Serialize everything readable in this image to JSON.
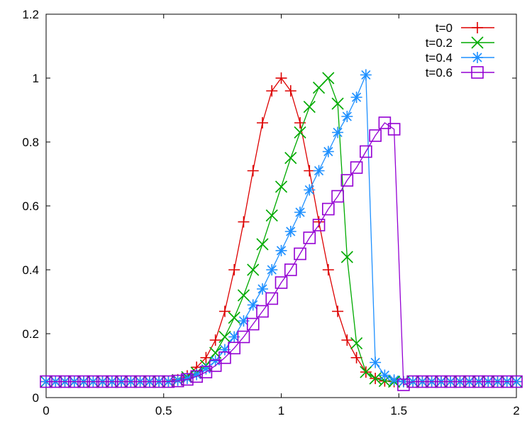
{
  "chart_data": {
    "type": "line",
    "title": "",
    "xlabel": "",
    "ylabel": "",
    "xlim": [
      0,
      2
    ],
    "ylim": [
      0,
      1.2
    ],
    "xticks": [
      "0",
      "0.5",
      "1",
      "1.5",
      "2"
    ],
    "yticks": [
      "0",
      "0.2",
      "0.4",
      "0.6",
      "0.8",
      "1",
      "1.2"
    ],
    "grid": false,
    "legend_position": "top-right",
    "series": [
      {
        "name": "t=0",
        "color": "#dd0000",
        "marker": "plus",
        "x": [
          0,
          0.04,
          0.08,
          0.12,
          0.16,
          0.2,
          0.24,
          0.28,
          0.32,
          0.36,
          0.4,
          0.44,
          0.48,
          0.52,
          0.56,
          0.6,
          0.64,
          0.68,
          0.72,
          0.76,
          0.8,
          0.84,
          0.88,
          0.92,
          0.96,
          1.0,
          1.04,
          1.08,
          1.12,
          1.16,
          1.2,
          1.24,
          1.28,
          1.32,
          1.36,
          1.4,
          1.44,
          1.48,
          1.52,
          1.56,
          1.6,
          1.64,
          1.68,
          1.72,
          1.76,
          1.8,
          1.84,
          1.88,
          1.92,
          1.96,
          2.0
        ],
        "y": [
          0.05,
          0.05,
          0.05,
          0.05,
          0.05,
          0.05,
          0.05,
          0.05,
          0.05,
          0.05,
          0.05,
          0.05,
          0.05,
          0.051,
          0.056,
          0.068,
          0.095,
          0.125,
          0.18,
          0.27,
          0.4,
          0.55,
          0.71,
          0.86,
          0.96,
          1.0,
          0.96,
          0.86,
          0.71,
          0.55,
          0.4,
          0.27,
          0.18,
          0.125,
          0.08,
          0.06,
          0.052,
          0.05,
          0.05,
          0.05,
          0.05,
          0.05,
          0.05,
          0.05,
          0.05,
          0.05,
          0.05,
          0.05,
          0.05,
          0.05,
          0.05
        ]
      },
      {
        "name": "t=0.2",
        "color": "#00aa00",
        "marker": "cross",
        "x": [
          0,
          0.04,
          0.08,
          0.12,
          0.16,
          0.2,
          0.24,
          0.28,
          0.32,
          0.36,
          0.4,
          0.44,
          0.48,
          0.52,
          0.56,
          0.6,
          0.64,
          0.68,
          0.72,
          0.76,
          0.8,
          0.84,
          0.88,
          0.92,
          0.96,
          1.0,
          1.04,
          1.08,
          1.12,
          1.16,
          1.2,
          1.24,
          1.28,
          1.32,
          1.36,
          1.4,
          1.44,
          1.48,
          1.52,
          1.56,
          1.6,
          1.64,
          1.68,
          1.72,
          1.76,
          1.8,
          1.84,
          1.88,
          1.92,
          1.96,
          2.0
        ],
        "y": [
          0.05,
          0.05,
          0.05,
          0.05,
          0.05,
          0.05,
          0.05,
          0.05,
          0.05,
          0.05,
          0.05,
          0.05,
          0.05,
          0.05,
          0.055,
          0.064,
          0.078,
          0.1,
          0.14,
          0.19,
          0.25,
          0.32,
          0.4,
          0.48,
          0.57,
          0.66,
          0.75,
          0.83,
          0.91,
          0.97,
          1.0,
          0.92,
          0.44,
          0.17,
          0.08,
          0.06,
          0.052,
          0.05,
          0.05,
          0.05,
          0.05,
          0.05,
          0.05,
          0.05,
          0.05,
          0.05,
          0.05,
          0.05,
          0.05,
          0.05,
          0.05
        ]
      },
      {
        "name": "t=0.4",
        "color": "#1e90ff",
        "marker": "star",
        "x": [
          0,
          0.04,
          0.08,
          0.12,
          0.16,
          0.2,
          0.24,
          0.28,
          0.32,
          0.36,
          0.4,
          0.44,
          0.48,
          0.52,
          0.56,
          0.6,
          0.64,
          0.68,
          0.72,
          0.76,
          0.8,
          0.84,
          0.88,
          0.92,
          0.96,
          1.0,
          1.04,
          1.08,
          1.12,
          1.16,
          1.2,
          1.24,
          1.28,
          1.32,
          1.36,
          1.4,
          1.44,
          1.48,
          1.52,
          1.56,
          1.6,
          1.64,
          1.68,
          1.72,
          1.76,
          1.8,
          1.84,
          1.88,
          1.92,
          1.96,
          2.0
        ],
        "y": [
          0.05,
          0.05,
          0.05,
          0.05,
          0.05,
          0.05,
          0.05,
          0.05,
          0.05,
          0.05,
          0.05,
          0.05,
          0.05,
          0.05,
          0.054,
          0.06,
          0.072,
          0.09,
          0.115,
          0.15,
          0.19,
          0.24,
          0.29,
          0.34,
          0.4,
          0.46,
          0.52,
          0.58,
          0.65,
          0.71,
          0.77,
          0.83,
          0.88,
          0.94,
          1.01,
          0.11,
          0.07,
          0.055,
          0.05,
          0.05,
          0.05,
          0.05,
          0.05,
          0.05,
          0.05,
          0.05,
          0.05,
          0.05,
          0.05,
          0.05,
          0.05
        ]
      },
      {
        "name": "t=0.6",
        "color": "#9400d3",
        "marker": "square",
        "x": [
          0,
          0.04,
          0.08,
          0.12,
          0.16,
          0.2,
          0.24,
          0.28,
          0.32,
          0.36,
          0.4,
          0.44,
          0.48,
          0.52,
          0.56,
          0.6,
          0.64,
          0.68,
          0.72,
          0.76,
          0.8,
          0.84,
          0.88,
          0.92,
          0.96,
          1.0,
          1.04,
          1.08,
          1.12,
          1.16,
          1.2,
          1.24,
          1.28,
          1.32,
          1.36,
          1.4,
          1.44,
          1.48,
          1.52,
          1.56,
          1.6,
          1.64,
          1.68,
          1.72,
          1.76,
          1.8,
          1.84,
          1.88,
          1.92,
          1.96,
          2.0
        ],
        "y": [
          0.05,
          0.05,
          0.05,
          0.05,
          0.05,
          0.05,
          0.05,
          0.05,
          0.05,
          0.05,
          0.05,
          0.05,
          0.05,
          0.05,
          0.052,
          0.057,
          0.066,
          0.08,
          0.1,
          0.125,
          0.155,
          0.19,
          0.23,
          0.27,
          0.31,
          0.36,
          0.4,
          0.45,
          0.5,
          0.54,
          0.59,
          0.63,
          0.68,
          0.72,
          0.77,
          0.82,
          0.86,
          0.84,
          0.04,
          0.05,
          0.05,
          0.05,
          0.05,
          0.05,
          0.05,
          0.05,
          0.05,
          0.05,
          0.05,
          0.05,
          0.05
        ]
      }
    ]
  }
}
